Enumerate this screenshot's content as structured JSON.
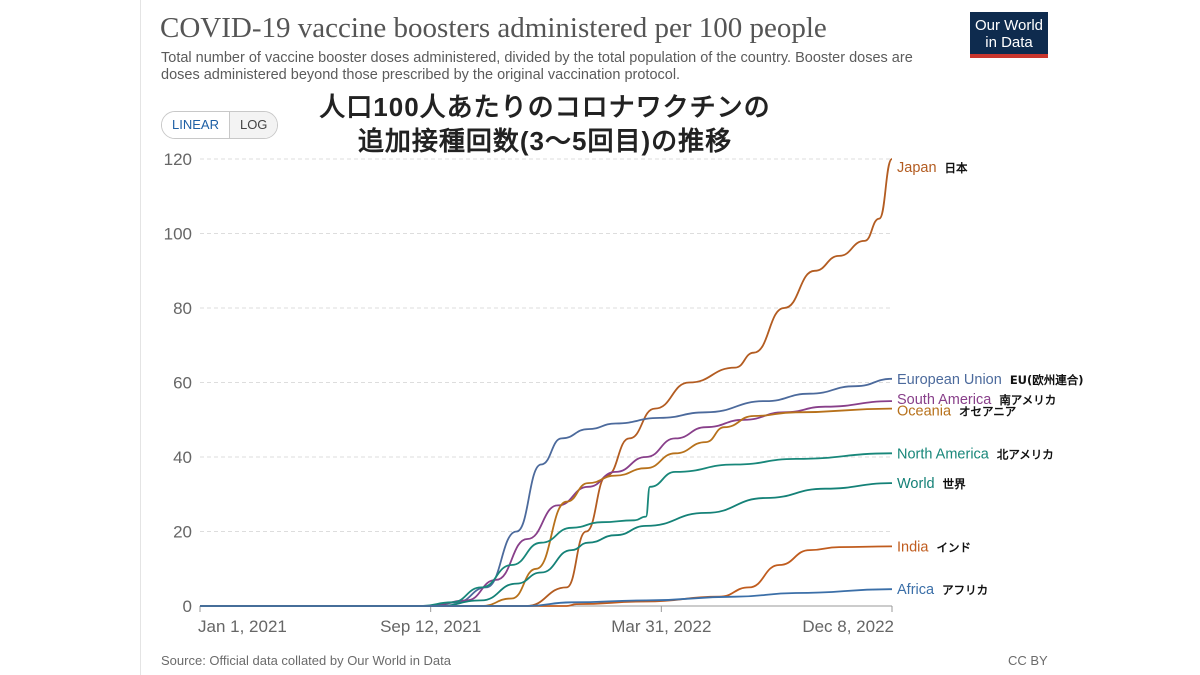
{
  "header": {
    "title": "COVID-19 vaccine boosters administered per 100 people",
    "subtitle": "Total number of vaccine booster doses administered, divided by the total population of the country. Booster doses are doses administered beyond those prescribed by the original vaccination protocol.",
    "logo_line1": "Our World",
    "logo_line2": "in Data",
    "japanese_title_line1": "人口100人あたりのコロナワクチンの",
    "japanese_title_line2": "追加接種回数(3〜5回目)の推移"
  },
  "controls": {
    "linear_label": "LINEAR",
    "log_label": "LOG"
  },
  "footer": {
    "source": "Source: Official data collated by Our World in Data",
    "license": "CC BY"
  },
  "colors": {
    "grid": "#dddddd",
    "axis": "#999999"
  },
  "chart_data": {
    "type": "line",
    "title": "COVID-19 vaccine boosters administered per 100 people",
    "xlabel": "",
    "ylabel": "",
    "x_ticks": [
      "Jan 1, 2021",
      "Sep 12, 2021",
      "Mar 31, 2022",
      "Dec 8, 2022"
    ],
    "xlim": [
      "2021-01-01",
      "2022-12-08"
    ],
    "ylim": [
      0,
      120
    ],
    "y_ticks": [
      0,
      20,
      40,
      60,
      80,
      100,
      120
    ],
    "grid": true,
    "legend": "right-end labels",
    "series": [
      {
        "name": "Japan",
        "label_jp": "日本",
        "color": "#b35c21",
        "points": [
          [
            "2021-01-01",
            0
          ],
          [
            "2021-11-30",
            0
          ],
          [
            "2022-01-10",
            5
          ],
          [
            "2022-01-30",
            20
          ],
          [
            "2022-02-20",
            35
          ],
          [
            "2022-03-15",
            45
          ],
          [
            "2022-04-10",
            53
          ],
          [
            "2022-05-15",
            60
          ],
          [
            "2022-07-01",
            64
          ],
          [
            "2022-07-20",
            68
          ],
          [
            "2022-08-20",
            80
          ],
          [
            "2022-09-20",
            90
          ],
          [
            "2022-10-15",
            94
          ],
          [
            "2022-11-10",
            98
          ],
          [
            "2022-11-25",
            104
          ],
          [
            "2022-12-08",
            120
          ]
        ]
      },
      {
        "name": "European Union",
        "label_jp": "EU(欧州連合)",
        "color": "#4c6a9c",
        "points": [
          [
            "2021-01-01",
            0
          ],
          [
            "2021-08-20",
            0
          ],
          [
            "2021-09-20",
            1
          ],
          [
            "2021-10-20",
            5
          ],
          [
            "2021-11-20",
            20
          ],
          [
            "2021-12-15",
            38
          ],
          [
            "2022-01-05",
            45
          ],
          [
            "2022-02-01",
            47.5
          ],
          [
            "2022-03-01",
            49
          ],
          [
            "2022-04-15",
            50.5
          ],
          [
            "2022-06-01",
            52
          ],
          [
            "2022-08-01",
            55
          ],
          [
            "2022-09-15",
            57
          ],
          [
            "2022-11-01",
            59
          ],
          [
            "2022-12-08",
            61
          ]
        ]
      },
      {
        "name": "South America",
        "label_jp": "南アメリカ",
        "color": "#883f8a",
        "points": [
          [
            "2021-01-01",
            0
          ],
          [
            "2021-08-25",
            0
          ],
          [
            "2021-09-30",
            1.5
          ],
          [
            "2021-10-30",
            7
          ],
          [
            "2021-12-01",
            18
          ],
          [
            "2022-01-01",
            27
          ],
          [
            "2022-02-01",
            32
          ],
          [
            "2022-03-01",
            36
          ],
          [
            "2022-04-01",
            40
          ],
          [
            "2022-05-01",
            45
          ],
          [
            "2022-06-01",
            48
          ],
          [
            "2022-07-10",
            50
          ],
          [
            "2022-08-20",
            52
          ],
          [
            "2022-10-01",
            53.5
          ],
          [
            "2022-12-08",
            55
          ]
        ]
      },
      {
        "name": "Oceania",
        "label_jp": "オセアニア",
        "color": "#b7711b",
        "points": [
          [
            "2021-01-01",
            0
          ],
          [
            "2021-10-15",
            0
          ],
          [
            "2021-11-15",
            2
          ],
          [
            "2021-12-10",
            10
          ],
          [
            "2022-01-10",
            28
          ],
          [
            "2022-02-01",
            33
          ],
          [
            "2022-03-01",
            35
          ],
          [
            "2022-04-01",
            37
          ],
          [
            "2022-05-01",
            41
          ],
          [
            "2022-06-01",
            44
          ],
          [
            "2022-06-20",
            48
          ],
          [
            "2022-07-20",
            51
          ],
          [
            "2022-09-01",
            52
          ],
          [
            "2022-12-08",
            53
          ]
        ]
      },
      {
        "name": "North America",
        "label_jp": "北アメリカ",
        "color": "#18877a",
        "points": [
          [
            "2021-01-01",
            0
          ],
          [
            "2021-08-15",
            0
          ],
          [
            "2021-09-15",
            1
          ],
          [
            "2021-10-15",
            5
          ],
          [
            "2021-11-15",
            11
          ],
          [
            "2021-12-15",
            17
          ],
          [
            "2022-01-15",
            21
          ],
          [
            "2022-02-15",
            22.5
          ],
          [
            "2022-03-20",
            23
          ],
          [
            "2022-04-01",
            24
          ],
          [
            "2022-04-05",
            32
          ],
          [
            "2022-05-01",
            36
          ],
          [
            "2022-07-01",
            38
          ],
          [
            "2022-09-01",
            39.5
          ],
          [
            "2022-12-08",
            41
          ]
        ]
      },
      {
        "name": "World",
        "label_jp": "世界",
        "color": "#148177",
        "points": [
          [
            "2021-01-01",
            0
          ],
          [
            "2021-09-01",
            0
          ],
          [
            "2021-10-15",
            1.5
          ],
          [
            "2021-11-20",
            6
          ],
          [
            "2021-12-15",
            9
          ],
          [
            "2022-01-15",
            15
          ],
          [
            "2022-02-01",
            17
          ],
          [
            "2022-03-01",
            19
          ],
          [
            "2022-04-01",
            21.5
          ],
          [
            "2022-06-01",
            25
          ],
          [
            "2022-08-01",
            29
          ],
          [
            "2022-10-01",
            31.5
          ],
          [
            "2022-12-08",
            33
          ]
        ]
      },
      {
        "name": "India",
        "label_jp": "インド",
        "color": "#c05c1e",
        "points": [
          [
            "2021-01-01",
            0
          ],
          [
            "2022-01-10",
            0
          ],
          [
            "2022-01-20",
            0.5
          ],
          [
            "2022-04-01",
            1.2
          ],
          [
            "2022-06-15",
            2.5
          ],
          [
            "2022-07-15",
            5
          ],
          [
            "2022-08-15",
            11
          ],
          [
            "2022-09-15",
            15
          ],
          [
            "2022-10-15",
            15.8
          ],
          [
            "2022-12-08",
            16
          ]
        ]
      },
      {
        "name": "Africa",
        "label_jp": "アフリカ",
        "color": "#3b6fa8",
        "points": [
          [
            "2021-01-01",
            0
          ],
          [
            "2021-12-01",
            0
          ],
          [
            "2022-01-15",
            1
          ],
          [
            "2022-04-01",
            1.5
          ],
          [
            "2022-07-01",
            2.5
          ],
          [
            "2022-09-01",
            3.5
          ],
          [
            "2022-12-08",
            4.5
          ]
        ]
      }
    ]
  }
}
